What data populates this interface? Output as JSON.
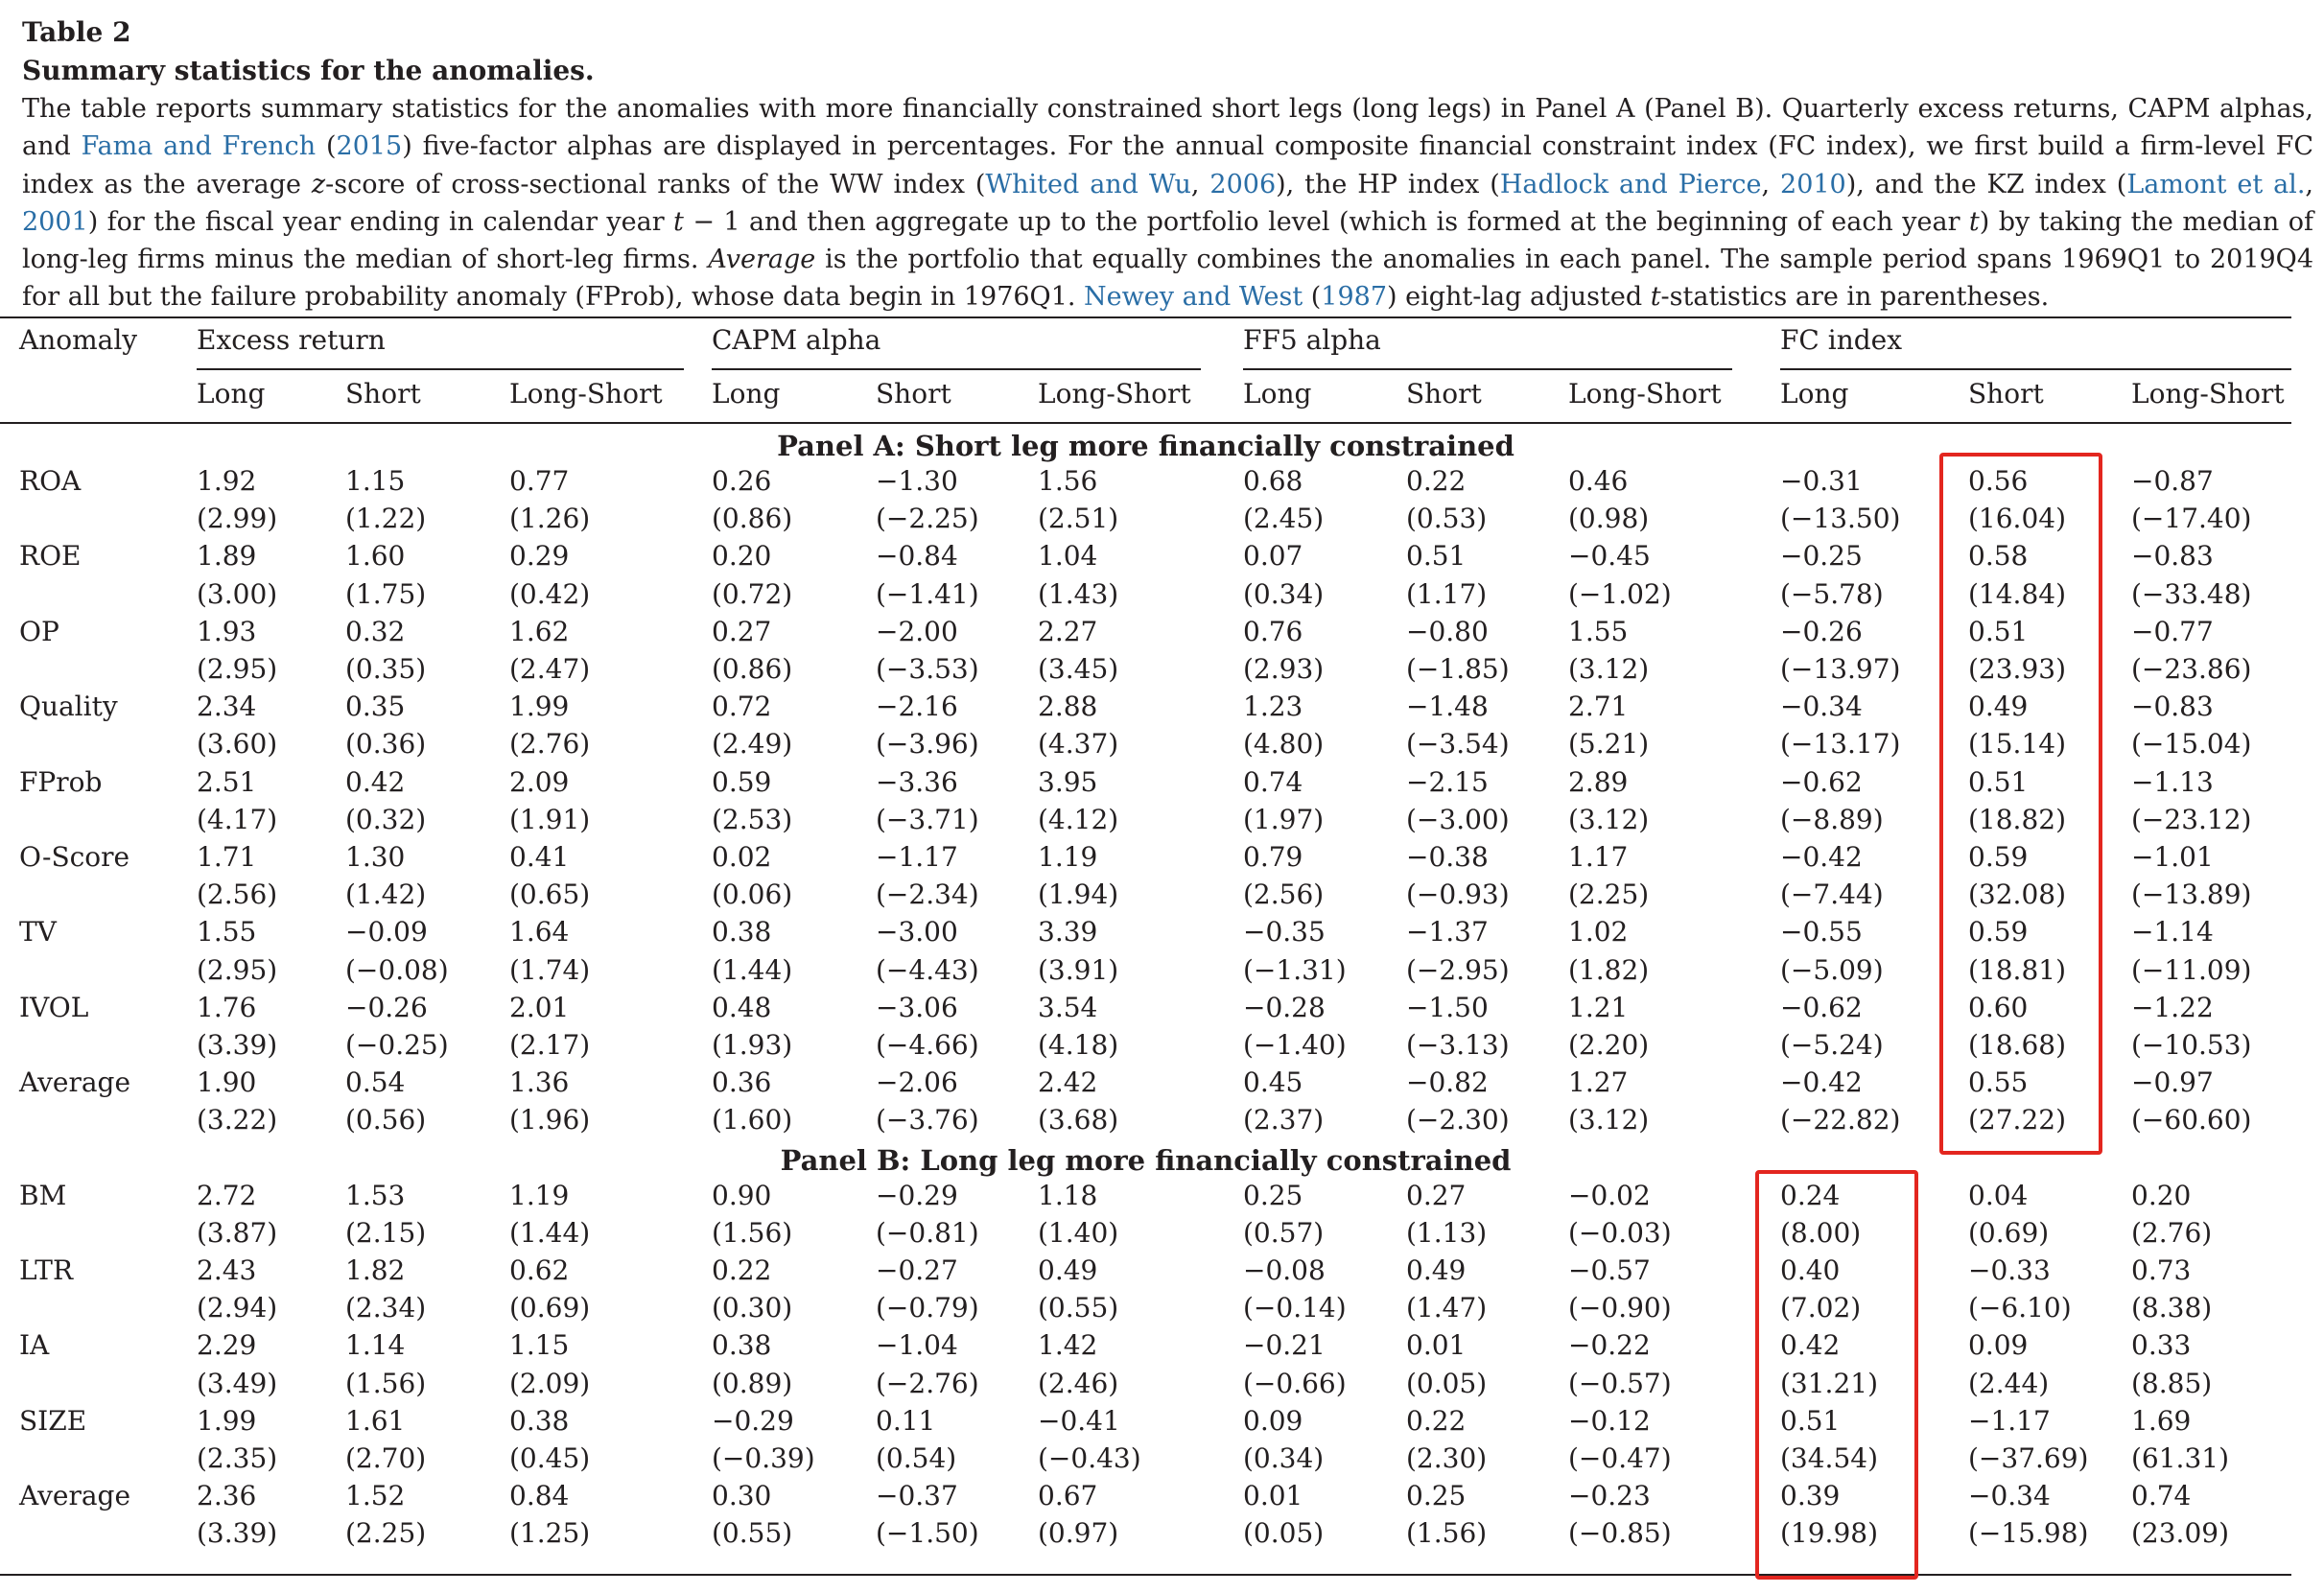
{
  "table_label": "Table 2",
  "table_title": "Summary statistics for the anomalies.",
  "caption": [
    {
      "t": "The table reports summary statistics for the anomalies with more financially constrained short legs (long legs) in Panel A (Panel B). Quarterly excess returns, CAPM alphas, and "
    },
    {
      "t": "Fama and French",
      "cite": true
    },
    {
      "t": " ("
    },
    {
      "t": "2015",
      "cite": true
    },
    {
      "t": ") five-factor alphas are displayed in percentages. For the annual composite financial constraint index (FC index), we first build a firm-level FC index as the average "
    },
    {
      "t": "z",
      "italic": true
    },
    {
      "t": "-score of cross-sectional ranks of the WW index ("
    },
    {
      "t": "Whited and Wu",
      "cite": true
    },
    {
      "t": ", "
    },
    {
      "t": "2006",
      "cite": true
    },
    {
      "t": "), the HP index ("
    },
    {
      "t": "Hadlock and Pierce",
      "cite": true
    },
    {
      "t": ", "
    },
    {
      "t": "2010",
      "cite": true
    },
    {
      "t": "), and the KZ index ("
    },
    {
      "t": "Lamont et al.",
      "cite": true
    },
    {
      "t": ", "
    },
    {
      "t": "2001",
      "cite": true
    },
    {
      "t": ") for the fiscal year ending in calendar year "
    },
    {
      "t": "t",
      "italic": true
    },
    {
      "t": " − 1 and then aggregate up to the portfolio level (which is formed at the beginning of each year "
    },
    {
      "t": "t",
      "italic": true
    },
    {
      "t": ") by taking the median of long-leg firms minus the median of short-leg firms. "
    },
    {
      "t": "Average",
      "italic": true
    },
    {
      "t": " is the portfolio that equally combines the anomalies in each panel. The sample period spans 1969Q1 to 2019Q4 for all but the failure probability anomaly (FProb), whose data begin in 1976Q1. "
    },
    {
      "t": "Newey and West",
      "cite": true
    },
    {
      "t": " ("
    },
    {
      "t": "1987",
      "cite": true
    },
    {
      "t": ") eight-lag adjusted "
    },
    {
      "t": "t",
      "italic": true
    },
    {
      "t": "-statistics are in parentheses."
    }
  ],
  "header": {
    "anomaly": "Anomaly",
    "groups": [
      "Excess return",
      "CAPM alpha",
      "FF5 alpha",
      "FC index"
    ],
    "subcols": [
      "Long",
      "Short",
      "Long-Short"
    ]
  },
  "panels": [
    {
      "title": "Panel A: Short leg more financially constrained",
      "rows": [
        {
          "name": "ROA",
          "vals": [
            "1.92",
            "1.15",
            "0.77",
            "0.26",
            "−1.30",
            "1.56",
            "0.68",
            "0.22",
            "0.46",
            "−0.31",
            "0.56",
            "−0.87"
          ],
          "tstats": [
            "(2.99)",
            "(1.22)",
            "(1.26)",
            "(0.86)",
            "(−2.25)",
            "(2.51)",
            "(2.45)",
            "(0.53)",
            "(0.98)",
            "(−13.50)",
            "(16.04)",
            "(−17.40)"
          ]
        },
        {
          "name": "ROE",
          "vals": [
            "1.89",
            "1.60",
            "0.29",
            "0.20",
            "−0.84",
            "1.04",
            "0.07",
            "0.51",
            "−0.45",
            "−0.25",
            "0.58",
            "−0.83"
          ],
          "tstats": [
            "(3.00)",
            "(1.75)",
            "(0.42)",
            "(0.72)",
            "(−1.41)",
            "(1.43)",
            "(0.34)",
            "(1.17)",
            "(−1.02)",
            "(−5.78)",
            "(14.84)",
            "(−33.48)"
          ]
        },
        {
          "name": "OP",
          "vals": [
            "1.93",
            "0.32",
            "1.62",
            "0.27",
            "−2.00",
            "2.27",
            "0.76",
            "−0.80",
            "1.55",
            "−0.26",
            "0.51",
            "−0.77"
          ],
          "tstats": [
            "(2.95)",
            "(0.35)",
            "(2.47)",
            "(0.86)",
            "(−3.53)",
            "(3.45)",
            "(2.93)",
            "(−1.85)",
            "(3.12)",
            "(−13.97)",
            "(23.93)",
            "(−23.86)"
          ]
        },
        {
          "name": "Quality",
          "vals": [
            "2.34",
            "0.35",
            "1.99",
            "0.72",
            "−2.16",
            "2.88",
            "1.23",
            "−1.48",
            "2.71",
            "−0.34",
            "0.49",
            "−0.83"
          ],
          "tstats": [
            "(3.60)",
            "(0.36)",
            "(2.76)",
            "(2.49)",
            "(−3.96)",
            "(4.37)",
            "(4.80)",
            "(−3.54)",
            "(5.21)",
            "(−13.17)",
            "(15.14)",
            "(−15.04)"
          ]
        },
        {
          "name": "FProb",
          "vals": [
            "2.51",
            "0.42",
            "2.09",
            "0.59",
            "−3.36",
            "3.95",
            "0.74",
            "−2.15",
            "2.89",
            "−0.62",
            "0.51",
            "−1.13"
          ],
          "tstats": [
            "(4.17)",
            "(0.32)",
            "(1.91)",
            "(2.53)",
            "(−3.71)",
            "(4.12)",
            "(1.97)",
            "(−3.00)",
            "(3.12)",
            "(−8.89)",
            "(18.82)",
            "(−23.12)"
          ]
        },
        {
          "name": "O-Score",
          "vals": [
            "1.71",
            "1.30",
            "0.41",
            "0.02",
            "−1.17",
            "1.19",
            "0.79",
            "−0.38",
            "1.17",
            "−0.42",
            "0.59",
            "−1.01"
          ],
          "tstats": [
            "(2.56)",
            "(1.42)",
            "(0.65)",
            "(0.06)",
            "(−2.34)",
            "(1.94)",
            "(2.56)",
            "(−0.93)",
            "(2.25)",
            "(−7.44)",
            "(32.08)",
            "(−13.89)"
          ]
        },
        {
          "name": "TV",
          "vals": [
            "1.55",
            "−0.09",
            "1.64",
            "0.38",
            "−3.00",
            "3.39",
            "−0.35",
            "−1.37",
            "1.02",
            "−0.55",
            "0.59",
            "−1.14"
          ],
          "tstats": [
            "(2.95)",
            "(−0.08)",
            "(1.74)",
            "(1.44)",
            "(−4.43)",
            "(3.91)",
            "(−1.31)",
            "(−2.95)",
            "(1.82)",
            "(−5.09)",
            "(18.81)",
            "(−11.09)"
          ]
        },
        {
          "name": "IVOL",
          "vals": [
            "1.76",
            "−0.26",
            "2.01",
            "0.48",
            "−3.06",
            "3.54",
            "−0.28",
            "−1.50",
            "1.21",
            "−0.62",
            "0.60",
            "−1.22"
          ],
          "tstats": [
            "(3.39)",
            "(−0.25)",
            "(2.17)",
            "(1.93)",
            "(−4.66)",
            "(4.18)",
            "(−1.40)",
            "(−3.13)",
            "(2.20)",
            "(−5.24)",
            "(18.68)",
            "(−10.53)"
          ]
        },
        {
          "name": "Average",
          "vals": [
            "1.90",
            "0.54",
            "1.36",
            "0.36",
            "−2.06",
            "2.42",
            "0.45",
            "−0.82",
            "1.27",
            "−0.42",
            "0.55",
            "−0.97"
          ],
          "tstats": [
            "(3.22)",
            "(0.56)",
            "(1.96)",
            "(1.60)",
            "(−3.76)",
            "(3.68)",
            "(2.37)",
            "(−2.30)",
            "(3.12)",
            "(−22.82)",
            "(27.22)",
            "(−60.60)"
          ]
        }
      ]
    },
    {
      "title": "Panel B: Long leg more financially constrained",
      "rows": [
        {
          "name": "BM",
          "vals": [
            "2.72",
            "1.53",
            "1.19",
            "0.90",
            "−0.29",
            "1.18",
            "0.25",
            "0.27",
            "−0.02",
            "0.24",
            "0.04",
            "0.20"
          ],
          "tstats": [
            "(3.87)",
            "(2.15)",
            "(1.44)",
            "(1.56)",
            "(−0.81)",
            "(1.40)",
            "(0.57)",
            "(1.13)",
            "(−0.03)",
            "(8.00)",
            "(0.69)",
            "(2.76)"
          ]
        },
        {
          "name": "LTR",
          "vals": [
            "2.43",
            "1.82",
            "0.62",
            "0.22",
            "−0.27",
            "0.49",
            "−0.08",
            "0.49",
            "−0.57",
            "0.40",
            "−0.33",
            "0.73"
          ],
          "tstats": [
            "(2.94)",
            "(2.34)",
            "(0.69)",
            "(0.30)",
            "(−0.79)",
            "(0.55)",
            "(−0.14)",
            "(1.47)",
            "(−0.90)",
            "(7.02)",
            "(−6.10)",
            "(8.38)"
          ]
        },
        {
          "name": "IA",
          "vals": [
            "2.29",
            "1.14",
            "1.15",
            "0.38",
            "−1.04",
            "1.42",
            "−0.21",
            "0.01",
            "−0.22",
            "0.42",
            "0.09",
            "0.33"
          ],
          "tstats": [
            "(3.49)",
            "(1.56)",
            "(2.09)",
            "(0.89)",
            "(−2.76)",
            "(2.46)",
            "(−0.66)",
            "(0.05)",
            "(−0.57)",
            "(31.21)",
            "(2.44)",
            "(8.85)"
          ]
        },
        {
          "name": "SIZE",
          "vals": [
            "1.99",
            "1.61",
            "0.38",
            "−0.29",
            "0.11",
            "−0.41",
            "0.09",
            "0.22",
            "−0.12",
            "0.51",
            "−1.17",
            "1.69"
          ],
          "tstats": [
            "(2.35)",
            "(2.70)",
            "(0.45)",
            "(−0.39)",
            "(0.54)",
            "(−0.43)",
            "(0.34)",
            "(2.30)",
            "(−0.47)",
            "(34.54)",
            "(−37.69)",
            "(61.31)"
          ]
        },
        {
          "name": "Average",
          "vals": [
            "2.36",
            "1.52",
            "0.84",
            "0.30",
            "−0.37",
            "0.67",
            "0.01",
            "0.25",
            "−0.23",
            "0.39",
            "−0.34",
            "0.74"
          ],
          "tstats": [
            "(3.39)",
            "(2.25)",
            "(1.25)",
            "(0.55)",
            "(−1.50)",
            "(0.97)",
            "(0.05)",
            "(1.56)",
            "(−0.85)",
            "(19.98)",
            "(−15.98)",
            "(23.09)"
          ]
        }
      ]
    }
  ],
  "colors": {
    "text": "#231f20",
    "citation": "#2a6ea6",
    "highlight_box": "#e3261f"
  }
}
